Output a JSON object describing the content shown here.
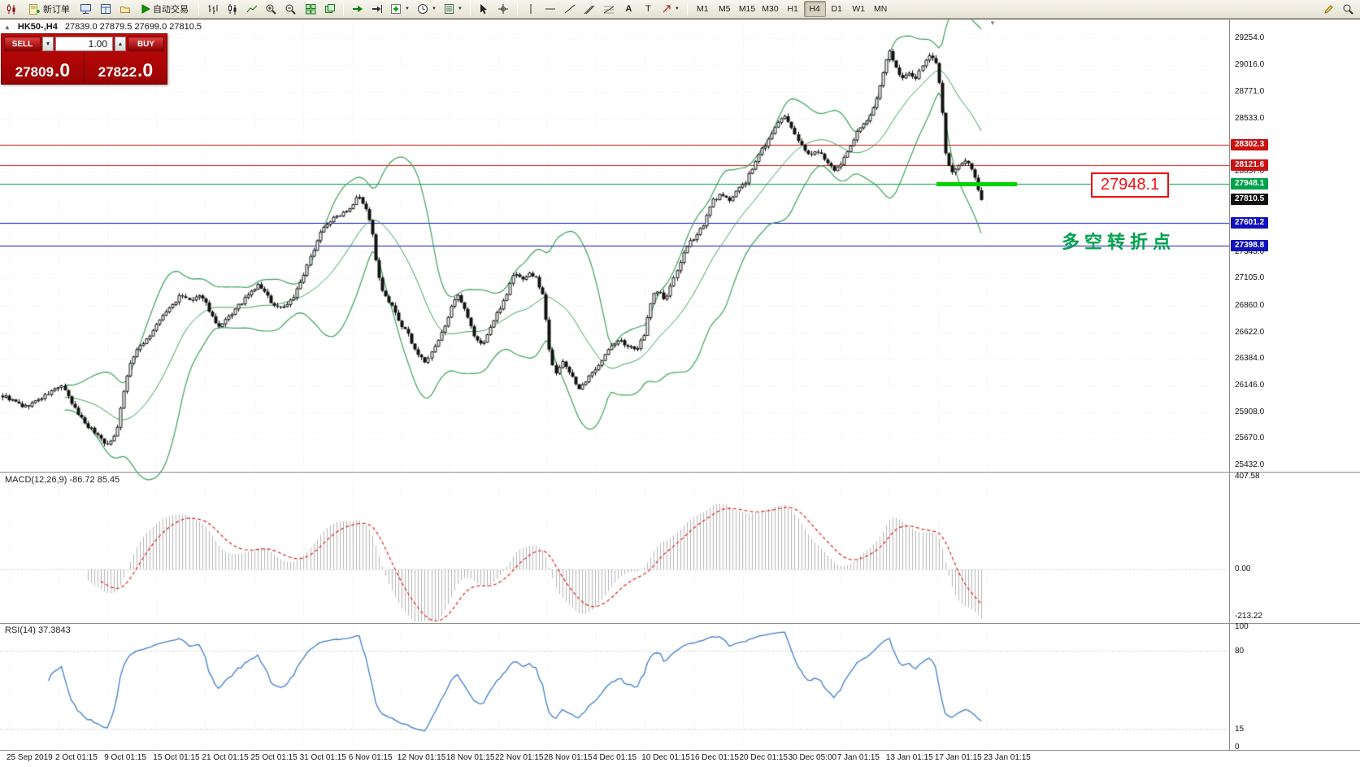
{
  "toolbar": {
    "new_order": "新订单",
    "auto_trading": "自动交易",
    "timeframes": [
      "M1",
      "M5",
      "M15",
      "M30",
      "H1",
      "H4",
      "D1",
      "W1",
      "MN"
    ],
    "active_timeframe": "H4"
  },
  "symbol_header": {
    "symbol": "HK50-,H4",
    "ohlc": "27839.0 27879.5 27699.0 27810.5"
  },
  "trade_panel": {
    "sell_label": "SELL",
    "buy_label": "BUY",
    "volume": "1.00",
    "sell_price": "27809",
    "sell_price_frac": ".0",
    "buy_price": "27822",
    "buy_price_frac": ".0"
  },
  "annotations": {
    "price_callout": "27948.1",
    "turning_point": "多空转折点"
  },
  "chart_data": {
    "type": "candlestick",
    "symbol": "HK50",
    "timeframe": "H4",
    "y_axis_ticks": [
      29254.0,
      29016.0,
      28771.0,
      28533.0,
      28057.0,
      27343.0,
      27105.0,
      26860.0,
      26622.0,
      26384.0,
      26146.0,
      25908.0,
      25670.0,
      25432.0
    ],
    "price_tags": [
      {
        "price": 28302.3,
        "color": "#cc1111",
        "type": "resistance"
      },
      {
        "price": 28121.6,
        "color": "#cc1111",
        "type": "resistance"
      },
      {
        "price": 27948.1,
        "color": "#00a14b",
        "type": "level"
      },
      {
        "price": 27810.5,
        "color": "#111111",
        "type": "current"
      },
      {
        "price": 27601.2,
        "color": "#1111bb",
        "type": "support"
      },
      {
        "price": 27398.8,
        "color": "#1111bb",
        "type": "support"
      }
    ],
    "x_axis_labels": [
      "25 Sep 2019",
      "2 Oct 01:15",
      "9 Oct 01:15",
      "15 Oct 01:15",
      "21 Oct 01:15",
      "25 Oct 01:15",
      "31 Oct 01:15",
      "6 Nov 01:15",
      "12 Nov 01:15",
      "18 Nov 01:15",
      "22 Nov 01:15",
      "28 Nov 01:15",
      "4 Dec 01:15",
      "10 Dec 01:15",
      "16 Dec 01:15",
      "20 Dec 01:15",
      "30 Dec 05:00",
      "7 Jan 01:15",
      "13 Jan 01:15",
      "17 Jan 01:15",
      "23 Jan 01:15"
    ],
    "bollinger": {
      "period": 20,
      "deviation": 2,
      "color": "#3aa05a"
    },
    "indicators": {
      "macd": {
        "label": "MACD(12,26,9) -86.72 85.45",
        "scale": [
          407.58,
          0.0,
          -213.22
        ]
      },
      "rsi": {
        "label": "RSI(14) 37.3843",
        "scale": [
          100,
          80,
          15,
          0
        ]
      }
    },
    "price_path": [
      [
        5,
        26050
      ],
      [
        30,
        25950
      ],
      [
        55,
        26050
      ],
      [
        75,
        26150
      ],
      [
        90,
        25950
      ],
      [
        105,
        25800
      ],
      [
        120,
        25700
      ],
      [
        133,
        25600
      ],
      [
        143,
        25750
      ],
      [
        152,
        26100
      ],
      [
        160,
        26350
      ],
      [
        172,
        26500
      ],
      [
        185,
        26600
      ],
      [
        198,
        26750
      ],
      [
        210,
        26850
      ],
      [
        222,
        26950
      ],
      [
        235,
        26900
      ],
      [
        248,
        26950
      ],
      [
        258,
        26800
      ],
      [
        268,
        26650
      ],
      [
        280,
        26750
      ],
      [
        292,
        26850
      ],
      [
        305,
        26950
      ],
      [
        318,
        27050
      ],
      [
        328,
        26950
      ],
      [
        338,
        26850
      ],
      [
        350,
        26850
      ],
      [
        362,
        26950
      ],
      [
        372,
        27100
      ],
      [
        382,
        27300
      ],
      [
        392,
        27500
      ],
      [
        402,
        27600
      ],
      [
        412,
        27650
      ],
      [
        422,
        27700
      ],
      [
        432,
        27750
      ],
      [
        440,
        27870
      ],
      [
        448,
        27750
      ],
      [
        456,
        27600
      ],
      [
        464,
        27150
      ],
      [
        472,
        26950
      ],
      [
        482,
        26850
      ],
      [
        492,
        26700
      ],
      [
        502,
        26600
      ],
      [
        512,
        26450
      ],
      [
        522,
        26350
      ],
      [
        532,
        26450
      ],
      [
        542,
        26600
      ],
      [
        552,
        26800
      ],
      [
        562,
        26950
      ],
      [
        572,
        26800
      ],
      [
        582,
        26600
      ],
      [
        592,
        26500
      ],
      [
        602,
        26650
      ],
      [
        612,
        26800
      ],
      [
        622,
        26950
      ],
      [
        632,
        27150
      ],
      [
        642,
        27100
      ],
      [
        652,
        27150
      ],
      [
        660,
        27100
      ],
      [
        668,
        26950
      ],
      [
        675,
        26500
      ],
      [
        682,
        26250
      ],
      [
        692,
        26350
      ],
      [
        702,
        26250
      ],
      [
        712,
        26100
      ],
      [
        722,
        26200
      ],
      [
        732,
        26300
      ],
      [
        742,
        26400
      ],
      [
        752,
        26500
      ],
      [
        762,
        26550
      ],
      [
        772,
        26500
      ],
      [
        782,
        26450
      ],
      [
        792,
        26600
      ],
      [
        802,
        26950
      ],
      [
        810,
        27000
      ],
      [
        818,
        26900
      ],
      [
        826,
        27050
      ],
      [
        836,
        27250
      ],
      [
        846,
        27400
      ],
      [
        856,
        27500
      ],
      [
        866,
        27600
      ],
      [
        876,
        27800
      ],
      [
        886,
        27850
      ],
      [
        896,
        27800
      ],
      [
        906,
        27900
      ],
      [
        916,
        27950
      ],
      [
        926,
        28100
      ],
      [
        936,
        28250
      ],
      [
        946,
        28350
      ],
      [
        956,
        28500
      ],
      [
        966,
        28550
      ],
      [
        976,
        28400
      ],
      [
        986,
        28300
      ],
      [
        996,
        28200
      ],
      [
        1006,
        28250
      ],
      [
        1016,
        28150
      ],
      [
        1026,
        28050
      ],
      [
        1036,
        28150
      ],
      [
        1046,
        28300
      ],
      [
        1056,
        28450
      ],
      [
        1066,
        28500
      ],
      [
        1076,
        28650
      ],
      [
        1086,
        28950
      ],
      [
        1094,
        29150
      ],
      [
        1102,
        28980
      ],
      [
        1110,
        28900
      ],
      [
        1118,
        28950
      ],
      [
        1126,
        28900
      ],
      [
        1134,
        29000
      ],
      [
        1142,
        29100
      ],
      [
        1150,
        29050
      ],
      [
        1157,
        28750
      ],
      [
        1163,
        28200
      ],
      [
        1170,
        28050
      ],
      [
        1178,
        28100
      ],
      [
        1186,
        28150
      ],
      [
        1194,
        28100
      ],
      [
        1201,
        27950
      ],
      [
        1207,
        27815
      ]
    ]
  }
}
